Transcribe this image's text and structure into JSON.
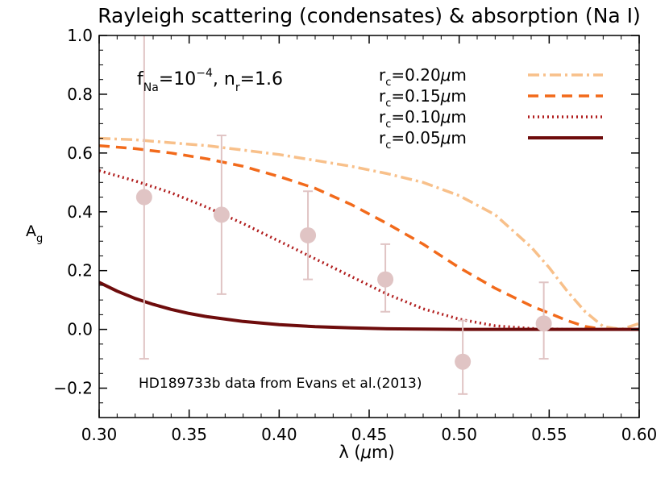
{
  "chart_data": {
    "type": "line",
    "title": "Rayleigh scattering (condensates) & absorption (Na I)",
    "xlabel": "λ (μm)",
    "ylabel": "A_g",
    "xlim": [
      0.3,
      0.6
    ],
    "ylim": [
      -0.3,
      1.0
    ],
    "x_ticks": [
      0.3,
      0.35,
      0.4,
      0.45,
      0.5,
      0.55,
      0.6
    ],
    "x_tick_labels": [
      "0.30",
      "0.35",
      "0.40",
      "0.45",
      "0.50",
      "0.55",
      "0.60"
    ],
    "y_ticks": [
      -0.2,
      0.0,
      0.2,
      0.4,
      0.6,
      0.8,
      1.0
    ],
    "y_tick_labels": [
      "−0.2",
      "0.0",
      "0.2",
      "0.4",
      "0.6",
      "0.8",
      "1.0"
    ],
    "grid": false,
    "annotation": {
      "parameters": "f_Na=10^-4, n_r=1.6",
      "data_source": "HD189733b data from Evans et al.(2013)"
    },
    "legend_position": "top-right",
    "series": [
      {
        "name": "r_c=0.20μm",
        "color": "#f8c08a",
        "style": "dash-dot",
        "x": [
          0.3,
          0.32,
          0.34,
          0.36,
          0.38,
          0.4,
          0.42,
          0.44,
          0.46,
          0.48,
          0.5,
          0.52,
          0.54,
          0.55,
          0.56,
          0.57,
          0.58,
          0.59,
          0.6
        ],
        "y": [
          0.65,
          0.645,
          0.635,
          0.625,
          0.61,
          0.595,
          0.575,
          0.555,
          0.53,
          0.5,
          0.455,
          0.39,
          0.28,
          0.21,
          0.13,
          0.06,
          0.01,
          0.0,
          0.02
        ]
      },
      {
        "name": "r_c=0.15μm",
        "color": "#f26a1b",
        "style": "dashed",
        "x": [
          0.3,
          0.32,
          0.34,
          0.36,
          0.38,
          0.4,
          0.42,
          0.44,
          0.46,
          0.48,
          0.5,
          0.52,
          0.54,
          0.56,
          0.57,
          0.58,
          0.59,
          0.6
        ],
        "y": [
          0.625,
          0.615,
          0.6,
          0.58,
          0.555,
          0.52,
          0.48,
          0.425,
          0.36,
          0.29,
          0.21,
          0.14,
          0.08,
          0.03,
          0.01,
          0.0,
          0.0,
          0.0
        ]
      },
      {
        "name": "r_c=0.10μm",
        "color": "#b01c1c",
        "style": "dotted",
        "x": [
          0.3,
          0.32,
          0.34,
          0.36,
          0.38,
          0.4,
          0.42,
          0.44,
          0.46,
          0.48,
          0.5,
          0.52,
          0.54,
          0.56,
          0.58,
          0.6
        ],
        "y": [
          0.54,
          0.505,
          0.465,
          0.415,
          0.36,
          0.3,
          0.24,
          0.18,
          0.12,
          0.07,
          0.035,
          0.012,
          0.003,
          0.0,
          0.0,
          0.0
        ]
      },
      {
        "name": "r_c=0.05μm",
        "color": "#6e0c0c",
        "style": "solid",
        "x": [
          0.3,
          0.31,
          0.32,
          0.33,
          0.34,
          0.35,
          0.36,
          0.38,
          0.4,
          0.42,
          0.44,
          0.46,
          0.48,
          0.5,
          0.55,
          0.6
        ],
        "y": [
          0.16,
          0.13,
          0.105,
          0.085,
          0.068,
          0.054,
          0.043,
          0.027,
          0.016,
          0.009,
          0.005,
          0.002,
          0.001,
          0.0,
          0.0,
          0.0
        ]
      }
    ],
    "observations": {
      "name": "HD189733b data from Evans et al.(2013)",
      "color": "#e0c4c4",
      "points": [
        {
          "x": 0.325,
          "y": 0.45,
          "ylow": -0.1,
          "yhigh": 1.0
        },
        {
          "x": 0.368,
          "y": 0.39,
          "ylow": 0.12,
          "yhigh": 0.66
        },
        {
          "x": 0.416,
          "y": 0.32,
          "ylow": 0.17,
          "yhigh": 0.47
        },
        {
          "x": 0.459,
          "y": 0.17,
          "ylow": 0.06,
          "yhigh": 0.29
        },
        {
          "x": 0.502,
          "y": -0.11,
          "ylow": -0.22,
          "yhigh": 0.03
        },
        {
          "x": 0.547,
          "y": 0.02,
          "ylow": -0.1,
          "yhigh": 0.16
        }
      ]
    }
  }
}
